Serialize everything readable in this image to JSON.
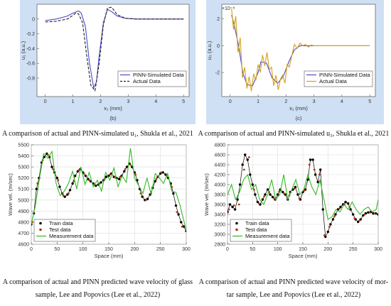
{
  "captions": {
    "a": "A comparison of actual and PINN-simulated u₁, Shukla et al., 2021",
    "b": "A comparison of actual and PINN-simulated u₃, Shukla et al., 2021",
    "c_line1": "A comparison of actual and PINN predicted wave velocity of glass",
    "c_line2": "sample, Lee and Popovics (Lee et al., 2022)",
    "d_line1": "A comparison of actual and PINN predicted wave velocity of mor-",
    "d_line2": "tar sample, Lee and Popovics (Lee et al., 2022)"
  },
  "colors": {
    "pinn": "#4a4ad0",
    "actual": "#222222",
    "actual_yellow": "#d4a017",
    "train": "#000000",
    "test": "#b03010",
    "measurement": "#33bb22"
  },
  "chart_data": [
    {
      "type": "line",
      "panel_label": "(b)",
      "xlabel": "x₁ (mm)",
      "ylabel": "u₁ (a.u.)",
      "xlim": [
        -0.3,
        5.2
      ],
      "ylim": [
        -1.05,
        0.2
      ],
      "xticks": [
        0,
        1,
        2,
        3,
        4,
        5
      ],
      "yticks": [
        0,
        -0.2,
        -0.4,
        -0.6,
        -0.8
      ],
      "grid": false,
      "legend": "bottom-right",
      "series": [
        {
          "name": "PINN-Simulated Data",
          "style": "solid",
          "color": "#4a4ad0",
          "x": [
            0,
            0.4,
            0.8,
            1.0,
            1.2,
            1.3,
            1.45,
            1.6,
            1.75,
            1.85,
            1.95,
            2.1,
            2.25,
            2.4,
            2.6,
            2.9,
            3.3,
            4,
            5
          ],
          "y": [
            -0.02,
            0,
            0.04,
            0.08,
            0.11,
            0.08,
            -0.1,
            -0.6,
            -0.93,
            -0.85,
            -0.5,
            -0.05,
            0.13,
            0.1,
            0.04,
            0.01,
            0,
            0,
            0
          ]
        },
        {
          "name": "Actual Data",
          "style": "dashed",
          "color": "#222222",
          "x": [
            0,
            0.4,
            0.8,
            1.0,
            1.1,
            1.2,
            1.35,
            1.5,
            1.65,
            1.8,
            1.95,
            2.1,
            2.25,
            2.4,
            2.6,
            2.9,
            3.3,
            4,
            5
          ],
          "y": [
            -0.04,
            -0.03,
            0,
            0.05,
            0.08,
            0.07,
            -0.05,
            -0.5,
            -0.9,
            -0.97,
            -0.6,
            -0.08,
            0.15,
            0.16,
            0.06,
            0.01,
            0,
            0,
            0
          ]
        }
      ]
    },
    {
      "type": "line",
      "panel_label": "(c)",
      "xlabel": "x₁ (mm)",
      "ylabel": "u₃ (a.u.)",
      "exponent_label": "×10⁻⁸",
      "xlim": [
        -0.3,
        5.2
      ],
      "ylim": [
        -3.8,
        3.1
      ],
      "xticks": [
        0,
        1,
        2,
        3,
        4,
        5
      ],
      "yticks": [
        2,
        0,
        -2
      ],
      "grid": false,
      "legend": "bottom-right",
      "series": [
        {
          "name": "PINN-Simulated Data",
          "style": "solid",
          "color": "#4a4ad0",
          "x": [
            0.05,
            0.15,
            0.3,
            0.45,
            0.6,
            0.8,
            1.0,
            1.1,
            1.3,
            1.5,
            1.7,
            1.9,
            2.1,
            2.3,
            2.5,
            3,
            4,
            5
          ],
          "y": [
            2.3,
            1.5,
            0,
            -2,
            -2.9,
            -3,
            -2,
            -1.2,
            -1.3,
            -2.4,
            -2.8,
            -2.3,
            -1.2,
            -0.3,
            0,
            0,
            0,
            0
          ]
        },
        {
          "name": "Actual Data",
          "style": "solid",
          "color": "#d4a017",
          "x": [
            0.05,
            0.12,
            0.2,
            0.28,
            0.36,
            0.44,
            0.52,
            0.6,
            0.68,
            0.76,
            0.84,
            0.92,
            1.0,
            1.08,
            1.16,
            1.24,
            1.32,
            1.4,
            1.48,
            1.56,
            1.64,
            1.72,
            1.8,
            1.88,
            1.96,
            2.04,
            2.12,
            2.2,
            2.3,
            2.4,
            2.5,
            2.6,
            2.7,
            2.8,
            2.9,
            3.0,
            3.2,
            3.5,
            4,
            4.5,
            5
          ],
          "y": [
            2.8,
            1.2,
            2.2,
            -0.5,
            0.6,
            -2.4,
            -1.6,
            -3.2,
            -2.3,
            -3.4,
            -2.1,
            -2.6,
            -1.4,
            -2.0,
            -0.7,
            -1.5,
            -0.5,
            -1.8,
            -1.6,
            -3.0,
            -2.2,
            -3.3,
            -2.5,
            -2.2,
            -2.8,
            -1.4,
            -1.6,
            -0.8,
            0.1,
            -0.2,
            0.2,
            0,
            0.1,
            -0.1,
            0.05,
            0,
            0,
            0,
            0,
            0,
            0
          ]
        }
      ]
    },
    {
      "type": "line",
      "xlabel": "Space (mm)",
      "ylabel": "Wave vel. (m/sec)",
      "xlim": [
        0,
        300
      ],
      "ylim": [
        4600,
        5500
      ],
      "xticks": [
        0,
        50,
        100,
        150,
        200,
        250,
        300
      ],
      "yticks": [
        4600,
        4700,
        4800,
        4900,
        5000,
        5100,
        5200,
        5300,
        5400,
        5500
      ],
      "grid": true,
      "legend": "bottom-left",
      "series": [
        {
          "name": "Train data",
          "style": "markers-line",
          "color": "#000000",
          "x": [
            0,
            5,
            10,
            15,
            20,
            25,
            30,
            35,
            40,
            45,
            50,
            55,
            60,
            65,
            70,
            75,
            80,
            85,
            90,
            95,
            100,
            105,
            110,
            115,
            120,
            125,
            130,
            135,
            140,
            145,
            150,
            155,
            160,
            165,
            170,
            175,
            180,
            185,
            190,
            195,
            200,
            205,
            210,
            215,
            220,
            225,
            230,
            235,
            240,
            245,
            250,
            255,
            260,
            265,
            270,
            275,
            280,
            285,
            290,
            295,
            300
          ],
          "y": [
            4780,
            4880,
            5100,
            5200,
            5340,
            5390,
            5420,
            5390,
            5300,
            5250,
            5200,
            5120,
            5060,
            5030,
            5050,
            5090,
            5150,
            5220,
            5260,
            5280,
            5250,
            5220,
            5190,
            5170,
            5150,
            5130,
            5140,
            5160,
            5180,
            5210,
            5220,
            5240,
            5210,
            5200,
            5190,
            5220,
            5260,
            5300,
            5330,
            5300,
            5250,
            5180,
            5100,
            5030,
            5000,
            5010,
            5050,
            5110,
            5170,
            5210,
            5240,
            5250,
            5230,
            5200,
            5150,
            5060,
            4950,
            4870,
            4800,
            4760,
            4720
          ]
        },
        {
          "name": "Test data",
          "style": "markers",
          "color": "#b03010",
          "x": [
            2,
            12,
            22,
            32,
            42,
            52,
            62,
            72,
            82,
            92,
            102,
            112,
            122,
            132,
            142,
            152,
            162,
            172,
            182,
            192,
            202,
            212,
            222,
            232,
            242,
            252,
            262,
            272,
            282,
            292
          ],
          "y": [
            4800,
            5150,
            5360,
            5410,
            5280,
            5180,
            5040,
            5060,
            5170,
            5270,
            5240,
            5180,
            5140,
            5150,
            5190,
            5230,
            5205,
            5210,
            5280,
            5320,
            5230,
            5060,
            5000,
            5060,
            5190,
            5250,
            5220,
            5120,
            4890,
            4760
          ]
        },
        {
          "name": "Measurement data",
          "style": "solid",
          "color": "#33bb22",
          "x": [
            0,
            8,
            16,
            24,
            32,
            40,
            48,
            56,
            64,
            72,
            80,
            88,
            96,
            104,
            112,
            120,
            128,
            136,
            144,
            152,
            160,
            168,
            176,
            184,
            192,
            200,
            208,
            216,
            224,
            232,
            240,
            248,
            256,
            264,
            272,
            280,
            288,
            296,
            300
          ],
          "y": [
            4780,
            4950,
            5200,
            5420,
            5380,
            5440,
            5150,
            5040,
            5080,
            5150,
            5260,
            5100,
            5300,
            5140,
            5250,
            5120,
            5180,
            5080,
            5250,
            5180,
            5290,
            5120,
            5220,
            5160,
            5470,
            5200,
            5130,
            5060,
            5200,
            5050,
            5240,
            5200,
            5150,
            5240,
            5080,
            5070,
            4950,
            4800,
            4720
          ]
        }
      ]
    },
    {
      "type": "line",
      "xlabel": "Space (mm)",
      "ylabel": "Wave vel. (m/sec)",
      "xlim": [
        0,
        300
      ],
      "ylim": [
        2800,
        4800
      ],
      "xticks": [
        0,
        50,
        100,
        150,
        200,
        250,
        300
      ],
      "yticks": [
        2800,
        3000,
        3200,
        3400,
        3600,
        3800,
        4000,
        4200,
        4400,
        4600,
        4800
      ],
      "grid": true,
      "legend": "bottom-left",
      "series": [
        {
          "name": "Train data",
          "style": "markers-line",
          "color": "#000000",
          "x": [
            0,
            5,
            10,
            15,
            20,
            25,
            30,
            35,
            40,
            45,
            50,
            55,
            60,
            65,
            70,
            75,
            80,
            85,
            90,
            95,
            100,
            105,
            110,
            115,
            120,
            125,
            130,
            135,
            140,
            145,
            150,
            155,
            160,
            165,
            170,
            175,
            180,
            185,
            190,
            195,
            200,
            205,
            210,
            215,
            220,
            225,
            230,
            235,
            240,
            245,
            250,
            255,
            260,
            265,
            270,
            275,
            280,
            285,
            290,
            295,
            300
          ],
          "y": [
            3450,
            3600,
            3550,
            3500,
            3700,
            4000,
            4400,
            4600,
            4500,
            4200,
            4000,
            3800,
            3650,
            3600,
            3700,
            3800,
            3900,
            3800,
            3750,
            3700,
            3800,
            3900,
            3850,
            3800,
            3700,
            3850,
            3900,
            3950,
            3800,
            3700,
            3850,
            3900,
            4100,
            4500,
            4500,
            4200,
            4050,
            4300,
            3500,
            2950,
            3050,
            3200,
            3300,
            3400,
            3500,
            3550,
            3600,
            3650,
            3620,
            3500,
            3400,
            3300,
            3250,
            3300,
            3380,
            3420,
            3440,
            3450,
            3420,
            3420,
            3400
          ]
        },
        {
          "name": "Test data",
          "style": "markers",
          "color": "#b03010",
          "x": [
            3,
            13,
            23,
            33,
            43,
            53,
            63,
            73,
            83,
            93,
            103,
            113,
            123,
            133,
            143,
            153,
            163,
            173,
            183,
            193,
            203,
            213,
            223,
            233,
            243,
            253,
            263,
            273,
            283,
            293
          ],
          "y": [
            3500,
            3580,
            3600,
            4300,
            4550,
            3900,
            3620,
            3760,
            3850,
            3720,
            3860,
            3820,
            3780,
            3920,
            3720,
            3880,
            4400,
            4300,
            4200,
            2980,
            3150,
            3360,
            3520,
            3600,
            3550,
            3320,
            3280,
            3400,
            3440,
            3420
          ]
        },
        {
          "name": "Measurement data",
          "style": "solid",
          "color": "#33bb22",
          "x": [
            0,
            8,
            16,
            24,
            32,
            40,
            48,
            56,
            64,
            72,
            80,
            88,
            96,
            104,
            112,
            120,
            128,
            136,
            144,
            152,
            160,
            168,
            176,
            184,
            192,
            200,
            208,
            216,
            224,
            232,
            240,
            248,
            256,
            264,
            272,
            280,
            288,
            296,
            300
          ],
          "y": [
            3800,
            4000,
            3700,
            3850,
            4100,
            4200,
            3900,
            4000,
            3700,
            3600,
            3800,
            4100,
            3700,
            3800,
            4200,
            3700,
            3900,
            4100,
            3800,
            3900,
            4200,
            3950,
            3800,
            4100,
            3700,
            3300,
            3350,
            3500,
            3450,
            3600,
            3500,
            3650,
            3500,
            3400,
            3500,
            3550,
            3450,
            3500,
            3700
          ]
        }
      ]
    }
  ]
}
